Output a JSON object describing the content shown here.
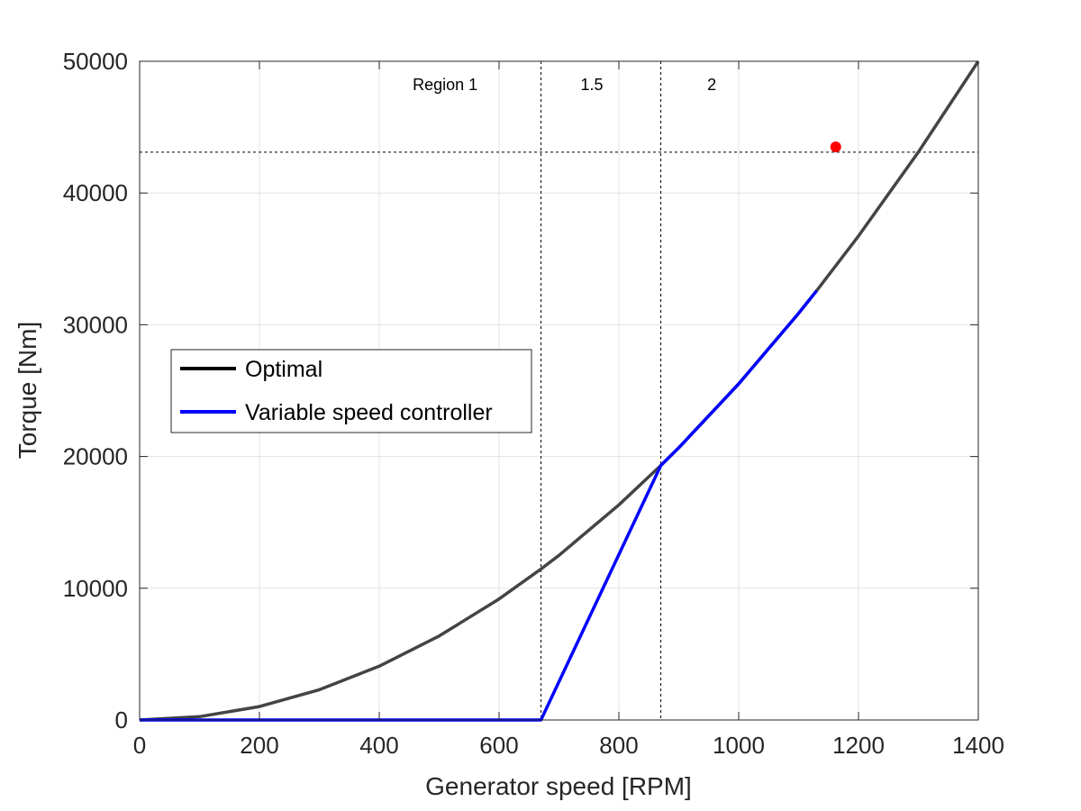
{
  "chart_data": {
    "type": "line",
    "title": "",
    "xlabel": "Generator speed [RPM]",
    "ylabel": "Torque [Nm]",
    "xlim": [
      0,
      1400
    ],
    "ylim": [
      0,
      50000
    ],
    "xticks": [
      0,
      200,
      400,
      600,
      800,
      1000,
      1200,
      1400
    ],
    "yticks": [
      0,
      10000,
      20000,
      30000,
      40000,
      50000
    ],
    "grid": true,
    "legend_position": "middle-left",
    "series": [
      {
        "name": "Optimal",
        "color": "#000000",
        "x": [
          0,
          100,
          200,
          300,
          400,
          500,
          600,
          670,
          700,
          800,
          870,
          900,
          1000,
          1100,
          1130,
          1200,
          1300,
          1400
        ],
        "y": [
          0,
          255,
          1020,
          2296,
          4082,
          6378,
          9184,
          11456,
          12500,
          16327,
          19325,
          20663,
          25510,
          30867,
          32578,
          36735,
          43112,
          50000
        ]
      },
      {
        "name": "Variable speed controller",
        "color": "#0000ff",
        "x": [
          0,
          670,
          870,
          900,
          1000,
          1100,
          1130
        ],
        "y": [
          0,
          0,
          19325,
          20663,
          25510,
          30867,
          32578
        ]
      }
    ],
    "reference_lines": {
      "vertical_x": [
        670,
        870
      ],
      "horizontal_y": [
        43100
      ]
    },
    "marker": {
      "x": 1162,
      "y": 43500,
      "color": "#ff0000"
    },
    "annotations": [
      {
        "text": "Region 1",
        "x": 510,
        "y": 47800
      },
      {
        "text": "1.5",
        "x": 755,
        "y": 47800
      },
      {
        "text": "2",
        "x": 955,
        "y": 47800
      }
    ]
  }
}
